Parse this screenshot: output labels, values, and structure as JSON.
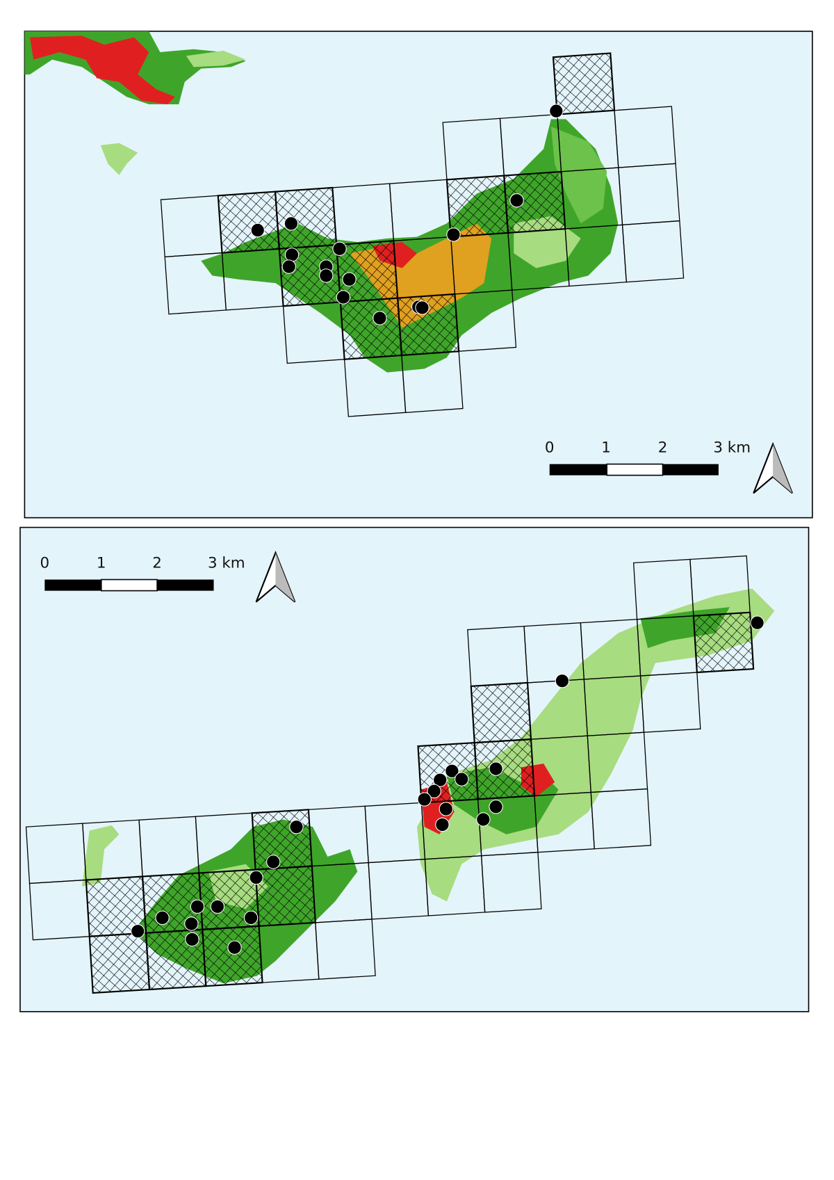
{
  "top_map": {
    "scale_labels": [
      "0",
      "1",
      "2",
      "3 km"
    ]
  },
  "bottom_map": {
    "scale_labels": [
      "0",
      "1",
      "2",
      "3 km"
    ]
  }
}
